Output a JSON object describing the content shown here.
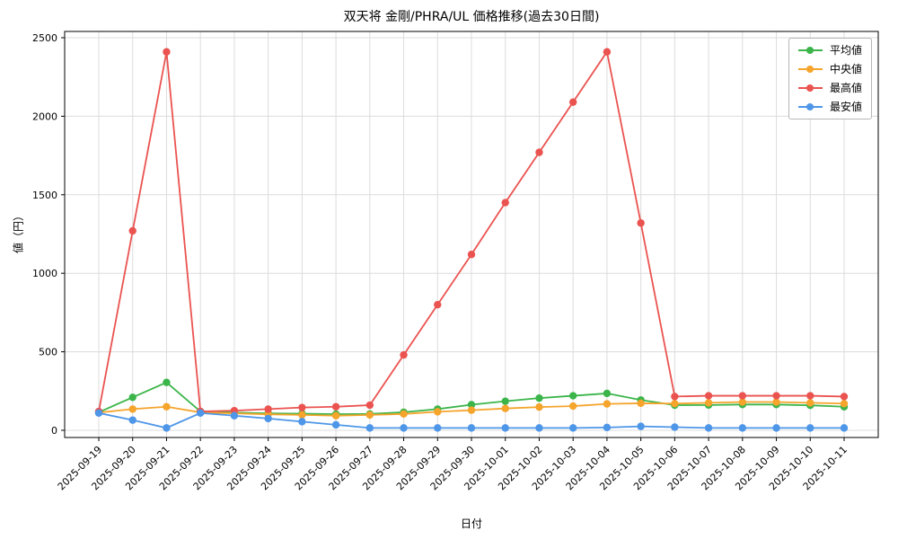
{
  "chart_data": {
    "type": "line",
    "title": "双天将 金剛/PHRA/UL 価格推移(過去30日間)",
    "xlabel": "日付",
    "ylabel": "値（円）",
    "ylim": [
      0,
      2500
    ],
    "yticks": [
      0,
      500,
      1000,
      1500,
      2000,
      2500
    ],
    "grid": true,
    "legend_position": "upper right",
    "categories": [
      "2025-09-19",
      "2025-09-20",
      "2025-09-21",
      "2025-09-22",
      "2025-09-23",
      "2025-09-24",
      "2025-09-25",
      "2025-09-26",
      "2025-09-27",
      "2025-09-28",
      "2025-09-29",
      "2025-09-30",
      "2025-10-01",
      "2025-10-02",
      "2025-10-03",
      "2025-10-04",
      "2025-10-05",
      "2025-10-06",
      "2025-10-07",
      "2025-10-08",
      "2025-10-09",
      "2025-10-10",
      "2025-10-11"
    ],
    "series": [
      {
        "key": "average",
        "name": "平均値",
        "color": "#3bb54a",
        "values": [
          115,
          210,
          305,
          120,
          113,
          108,
          106,
          103,
          104,
          115,
          135,
          163,
          185,
          205,
          220,
          235,
          193,
          160,
          161,
          164,
          164,
          159,
          150
        ]
      },
      {
        "key": "median",
        "name": "中央値",
        "color": "#f5a42c",
        "values": [
          113,
          135,
          150,
          114,
          108,
          102,
          98,
          93,
          98,
          104,
          118,
          128,
          139,
          148,
          154,
          168,
          172,
          170,
          175,
          180,
          180,
          175,
          170
        ]
      },
      {
        "key": "max",
        "name": "最高値",
        "color": "#ea5350",
        "values": [
          120,
          1270,
          2410,
          120,
          125,
          135,
          145,
          150,
          160,
          480,
          800,
          1120,
          1450,
          1770,
          2090,
          2410,
          1320,
          215,
          220,
          220,
          220,
          220,
          215
        ]
      },
      {
        "key": "min",
        "name": "最安値",
        "color": "#4e96e8",
        "values": [
          110,
          65,
          15,
          110,
          93,
          75,
          55,
          35,
          15,
          15,
          15,
          15,
          15,
          15,
          15,
          18,
          25,
          20,
          15,
          15,
          15,
          15,
          15
        ]
      }
    ]
  }
}
